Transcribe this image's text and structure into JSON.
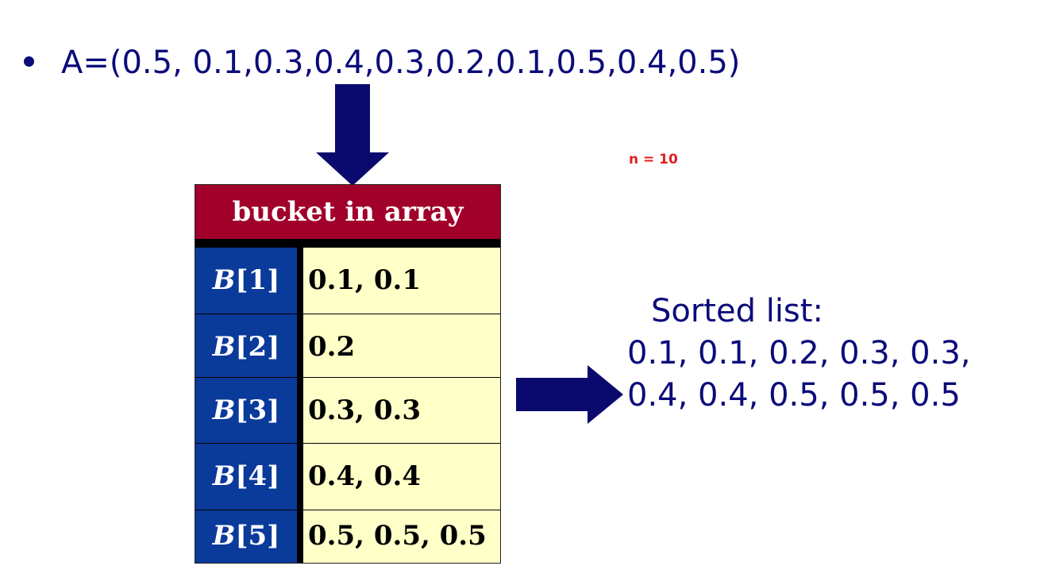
{
  "bullet_text": "A=(0.5, 0.1,0.3,0.4,0.3,0.2,0.1,0.5,0.4,0.5)",
  "n_label": "n = 10",
  "table": {
    "header": "bucket in array",
    "rows": [
      {
        "prefix": "B",
        "index": "[1]",
        "values": "0.1, 0.1"
      },
      {
        "prefix": "B",
        "index": "[2]",
        "values": "0.2"
      },
      {
        "prefix": "B",
        "index": "[3]",
        "values": "0.3, 0.3"
      },
      {
        "prefix": "B",
        "index": "[4]",
        "values": "0.4, 0.4"
      },
      {
        "prefix": "B",
        "index": "[5]",
        "values": "0.5, 0.5, 0.5"
      }
    ]
  },
  "sorted": {
    "title": "Sorted list:",
    "line1": "0.1, 0.1, 0.2, 0.3, 0.3,",
    "line2": "0.4, 0.4, 0.5, 0.5, 0.5"
  },
  "colors": {
    "text_navy": "#0b0b7a",
    "arrow_navy": "#0a0a6e",
    "header_red": "#a0002a",
    "index_blue": "#0a3a9a",
    "value_yellow": "#ffffc8",
    "n_red": "#e02020"
  },
  "icons": {
    "down_arrow": "down-arrow-icon",
    "right_arrow": "right-arrow-icon"
  }
}
